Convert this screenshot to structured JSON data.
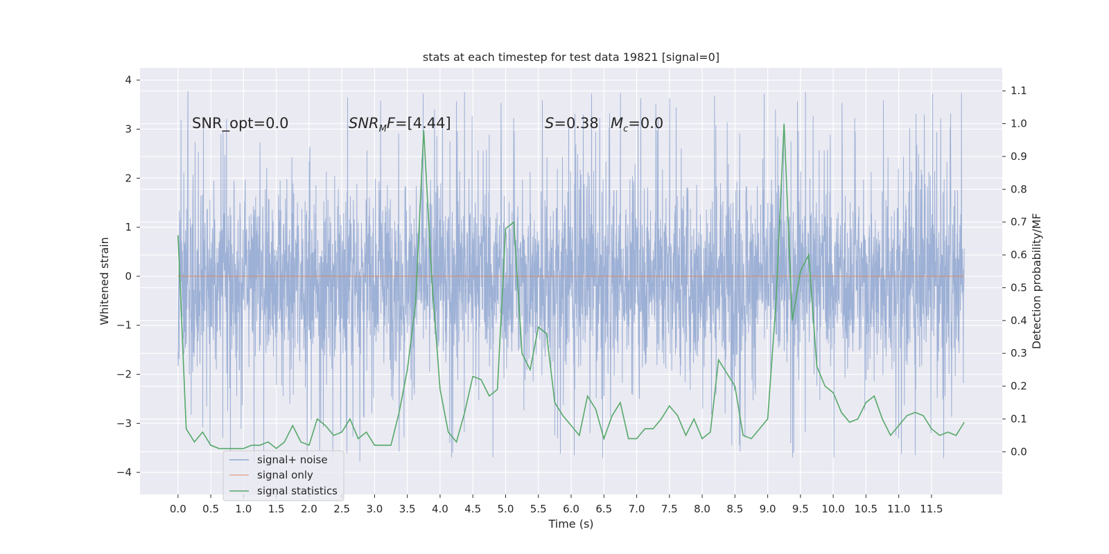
{
  "chart_data": {
    "type": "line",
    "title": "stats at each timestep for test data 19821 [signal=0]",
    "xlabel": "Time (s)",
    "ylabel": "Whitened strain",
    "y2label": "Detection probability/MF",
    "xlim": [
      -0.58,
      12.58
    ],
    "ylim": [
      -4.45,
      4.25
    ],
    "y2lim": [
      -0.13,
      1.17
    ],
    "xticks": [
      "0.0",
      "0.5",
      "1.0",
      "1.5",
      "2.0",
      "2.5",
      "3.0",
      "3.5",
      "4.0",
      "4.5",
      "5.0",
      "5.5",
      "6.0",
      "6.5",
      "7.0",
      "7.5",
      "8.0",
      "8.5",
      "9.0",
      "9.5",
      "10.0",
      "10.5",
      "11.0",
      "11.5"
    ],
    "yticks": [
      "4",
      "3",
      "2",
      "1",
      "0",
      "−1",
      "−2",
      "−3",
      "−4"
    ],
    "y2ticks": [
      "1.1",
      "1.0",
      "0.9",
      "0.8",
      "0.7",
      "0.6",
      "0.5",
      "0.4",
      "0.3",
      "0.2",
      "0.1",
      "0.0"
    ],
    "grid": true,
    "legend_position": "lower-left",
    "annotations": [
      {
        "text": "SNR_opt=0.0"
      },
      {
        "text": "SNR",
        "sub": "M",
        "rest": "F=[4.44]"
      },
      {
        "text": "S",
        "rest": "=0.38"
      },
      {
        "text": "M",
        "sub": "c",
        "rest": "=0.0"
      }
    ],
    "series": [
      {
        "name": "signal+ noise",
        "color": "#8fa6d0",
        "axis": "left",
        "time_range": [
          0.0,
          12.0
        ],
        "envelope": {
          "typical_abs": 2.1,
          "max_abs": 4.1
        }
      },
      {
        "name": "signal only",
        "color": "#dd8452",
        "axis": "left",
        "x": [
          0.0,
          12.0
        ],
        "y": [
          0.0,
          0.0
        ]
      },
      {
        "name": "signal statistics",
        "color": "#55a868",
        "axis": "right",
        "x": [
          0.0,
          0.125,
          0.25,
          0.375,
          0.5,
          0.625,
          0.75,
          0.875,
          1.0,
          1.125,
          1.25,
          1.375,
          1.5,
          1.625,
          1.75,
          1.875,
          2.0,
          2.125,
          2.25,
          2.375,
          2.5,
          2.625,
          2.75,
          2.875,
          3.0,
          3.125,
          3.25,
          3.375,
          3.5,
          3.625,
          3.75,
          3.875,
          4.0,
          4.125,
          4.25,
          4.375,
          4.5,
          4.625,
          4.75,
          4.875,
          5.0,
          5.125,
          5.25,
          5.375,
          5.5,
          5.625,
          5.75,
          5.875,
          6.0,
          6.125,
          6.25,
          6.375,
          6.5,
          6.625,
          6.75,
          6.875,
          7.0,
          7.125,
          7.25,
          7.375,
          7.5,
          7.625,
          7.75,
          7.875,
          8.0,
          8.125,
          8.25,
          8.375,
          8.5,
          8.625,
          8.75,
          8.875,
          9.0,
          9.125,
          9.25,
          9.375,
          9.5,
          9.625,
          9.75,
          9.875,
          10.0,
          10.125,
          10.25,
          10.375,
          10.5,
          10.625,
          10.75,
          10.875,
          11.0,
          11.125,
          11.25,
          11.375,
          11.5,
          11.625,
          11.75,
          11.875,
          12.0
        ],
        "y": [
          0.66,
          0.07,
          0.03,
          0.06,
          0.02,
          0.01,
          0.01,
          0.01,
          0.01,
          0.02,
          0.02,
          0.03,
          0.01,
          0.03,
          0.08,
          0.03,
          0.02,
          0.1,
          0.08,
          0.05,
          0.06,
          0.1,
          0.04,
          0.06,
          0.02,
          0.02,
          0.02,
          0.12,
          0.25,
          0.45,
          0.98,
          0.52,
          0.19,
          0.06,
          0.03,
          0.12,
          0.23,
          0.22,
          0.17,
          0.19,
          0.68,
          0.7,
          0.3,
          0.25,
          0.38,
          0.36,
          0.15,
          0.11,
          0.08,
          0.05,
          0.17,
          0.13,
          0.04,
          0.11,
          0.15,
          0.04,
          0.04,
          0.07,
          0.07,
          0.1,
          0.14,
          0.11,
          0.05,
          0.1,
          0.04,
          0.06,
          0.28,
          0.24,
          0.2,
          0.05,
          0.04,
          0.07,
          0.1,
          0.45,
          1.0,
          0.4,
          0.55,
          0.6,
          0.26,
          0.2,
          0.18,
          0.12,
          0.09,
          0.1,
          0.15,
          0.17,
          0.1,
          0.05,
          0.08,
          0.11,
          0.12,
          0.11,
          0.07,
          0.05,
          0.06,
          0.05,
          0.09
        ]
      }
    ]
  }
}
